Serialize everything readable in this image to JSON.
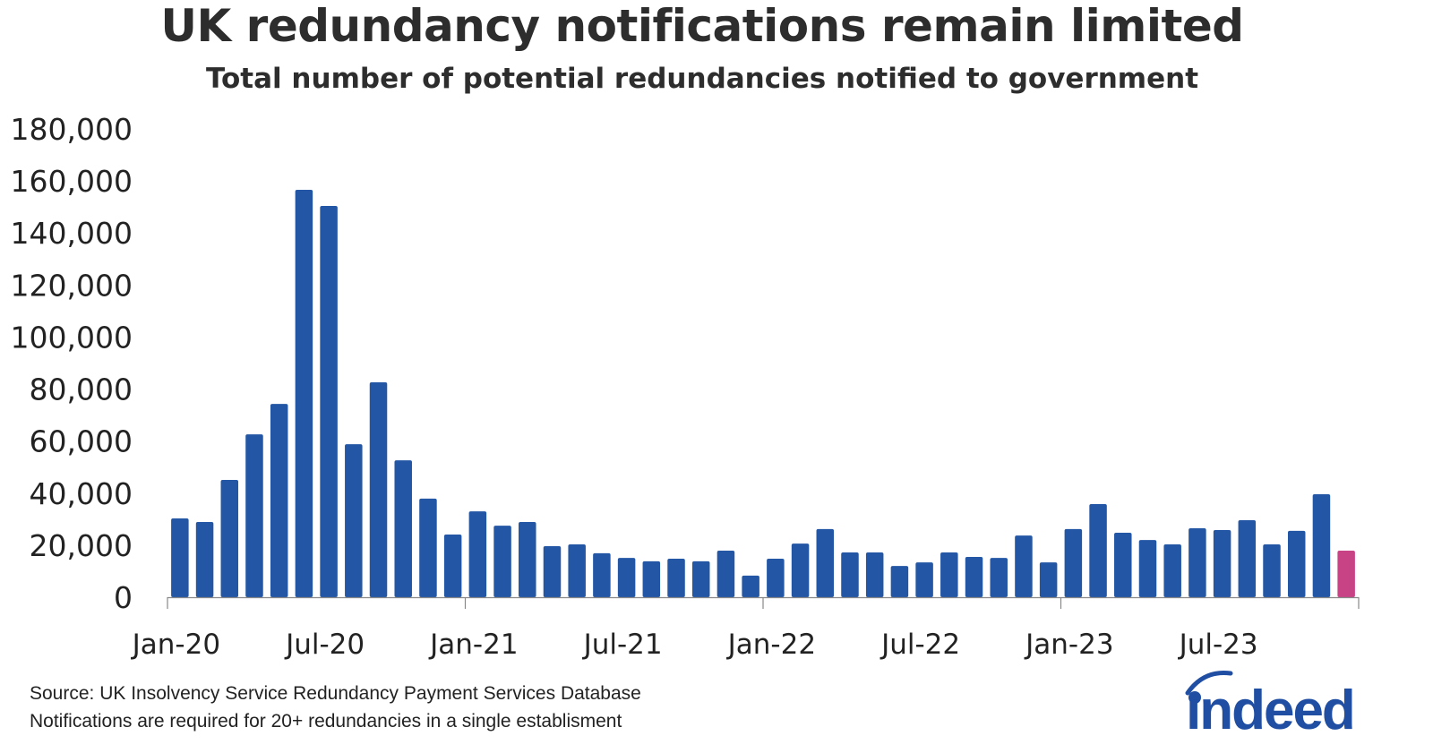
{
  "title": "UK redundancy notifications remain limited",
  "subtitle": "Total number of potential redundancies notified to government",
  "source_lines": [
    "Source: UK Insolvency Service Redundancy Payment Services Database",
    "Notifications are required for 20+ redundancies in a single establisment"
  ],
  "logo_text": "indeed",
  "colors": {
    "bar": "#2356a5",
    "highlight": "#c84385",
    "logo": "#1f4ea3"
  },
  "chart_data": {
    "type": "bar",
    "title": "UK redundancy notifications remain limited",
    "subtitle": "Total number of potential redundancies notified to government",
    "xlabel": "",
    "ylabel": "",
    "ylim": [
      0,
      180000
    ],
    "yticks": [
      "0",
      "20,000",
      "40,000",
      "60,000",
      "80,000",
      "100,000",
      "120,000",
      "140,000",
      "160,000",
      "180,000"
    ],
    "xtick_labels": [
      "Jan-20",
      "Jul-20",
      "Jan-21",
      "Jul-21",
      "Jan-22",
      "Jul-22",
      "Jan-23",
      "Jul-23"
    ],
    "grid": false,
    "highlighted_category": "Dec-23",
    "categories": [
      "Jan-20",
      "Feb-20",
      "Mar-20",
      "Apr-20",
      "May-20",
      "Jun-20",
      "Jul-20",
      "Aug-20",
      "Sep-20",
      "Oct-20",
      "Nov-20",
      "Dec-20",
      "Jan-21",
      "Feb-21",
      "Mar-21",
      "Apr-21",
      "May-21",
      "Jun-21",
      "Jul-21",
      "Aug-21",
      "Sep-21",
      "Oct-21",
      "Nov-21",
      "Dec-21",
      "Jan-22",
      "Feb-22",
      "Mar-22",
      "Apr-22",
      "May-22",
      "Jun-22",
      "Jul-22",
      "Aug-22",
      "Sep-22",
      "Oct-22",
      "Nov-22",
      "Dec-22",
      "Jan-23",
      "Feb-23",
      "Mar-23",
      "Apr-23",
      "May-23",
      "Jun-23",
      "Jul-23",
      "Aug-23",
      "Sep-23",
      "Oct-23",
      "Nov-23",
      "Dec-23"
    ],
    "values": [
      30300,
      28900,
      45100,
      62600,
      74300,
      156600,
      150400,
      58800,
      82600,
      52600,
      37900,
      24100,
      33000,
      27500,
      28900,
      19600,
      20300,
      16900,
      15100,
      13800,
      14800,
      13800,
      17900,
      8300,
      14800,
      20600,
      26200,
      17200,
      17200,
      12000,
      13400,
      17200,
      15500,
      15100,
      23700,
      13400,
      26200,
      35800,
      24800,
      22000,
      20300,
      26500,
      25800,
      29600,
      20300,
      25500,
      39600,
      17900
    ]
  }
}
